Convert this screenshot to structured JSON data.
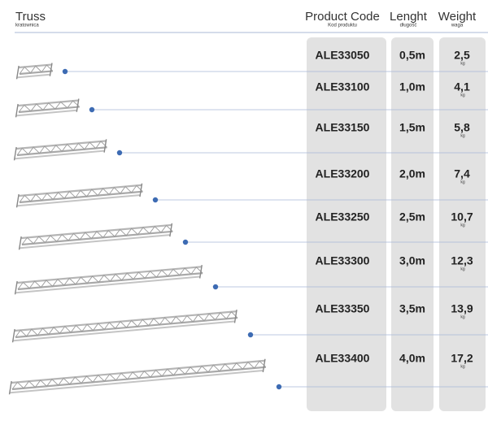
{
  "header": {
    "truss": {
      "title": "Truss",
      "subtitle": "kratownica"
    },
    "code": {
      "title": "Product Code",
      "subtitle": "Kod produktu"
    },
    "length": {
      "title": "Lenght",
      "subtitle": "długość"
    },
    "weight": {
      "title": "Weight",
      "subtitle": "waga"
    }
  },
  "rows": [
    {
      "code": "ALE33050",
      "length": "0,5m",
      "weight": "2,5",
      "unit": "kg"
    },
    {
      "code": "ALE33100",
      "length": "1,0m",
      "weight": "4,1",
      "unit": "kg"
    },
    {
      "code": "ALE33150",
      "length": "1,5m",
      "weight": "5,8",
      "unit": "kg"
    },
    {
      "code": "ALE33200",
      "length": "2,0m",
      "weight": "7,4",
      "unit": "kg"
    },
    {
      "code": "ALE33250",
      "length": "2,5m",
      "weight": "10,7",
      "unit": "kg"
    },
    {
      "code": "ALE33300",
      "length": "3,0m",
      "weight": "12,3",
      "unit": "kg"
    },
    {
      "code": "ALE33350",
      "length": "3,5m",
      "weight": "13,9",
      "unit": "kg"
    },
    {
      "code": "ALE33400",
      "length": "4,0m",
      "weight": "17,2",
      "unit": "kg"
    }
  ]
}
